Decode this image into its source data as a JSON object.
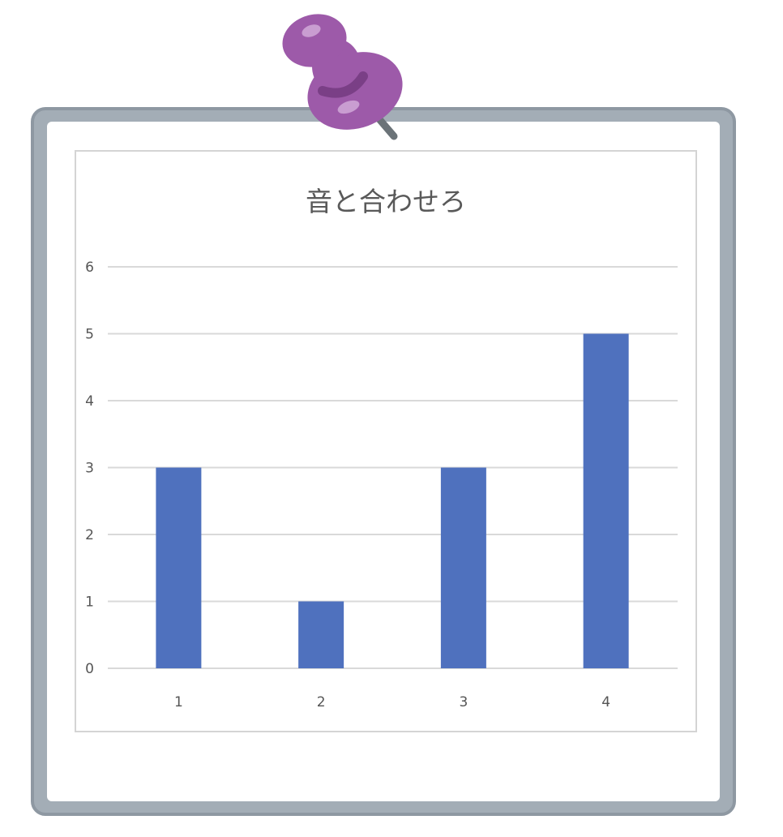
{
  "colors": {
    "frame": "#a3adb6",
    "frame_edge": "#8e98a2",
    "paper": "#ffffff",
    "chart_border": "#d4d4d4",
    "gridline": "#d9d9d9",
    "bar": "#4f71be",
    "text": "#595959",
    "pin": "#9d5aa9",
    "pin_dark": "#7a3f86",
    "pin_highlight": "#c99dd1",
    "pin_needle": "#6b7378"
  },
  "decor": {
    "pin_icon": "push-pin-icon",
    "frame_icon": "sketch-frame"
  },
  "chart_data": {
    "type": "bar",
    "title": "音と合わせろ",
    "categories": [
      "1",
      "2",
      "3",
      "4"
    ],
    "values": [
      3,
      1,
      3,
      5
    ],
    "xlabel": "",
    "ylabel": "",
    "ylim": [
      0,
      6
    ],
    "yticks": [
      0,
      1,
      2,
      3,
      4,
      5,
      6
    ],
    "grid": true,
    "legend": "none"
  }
}
